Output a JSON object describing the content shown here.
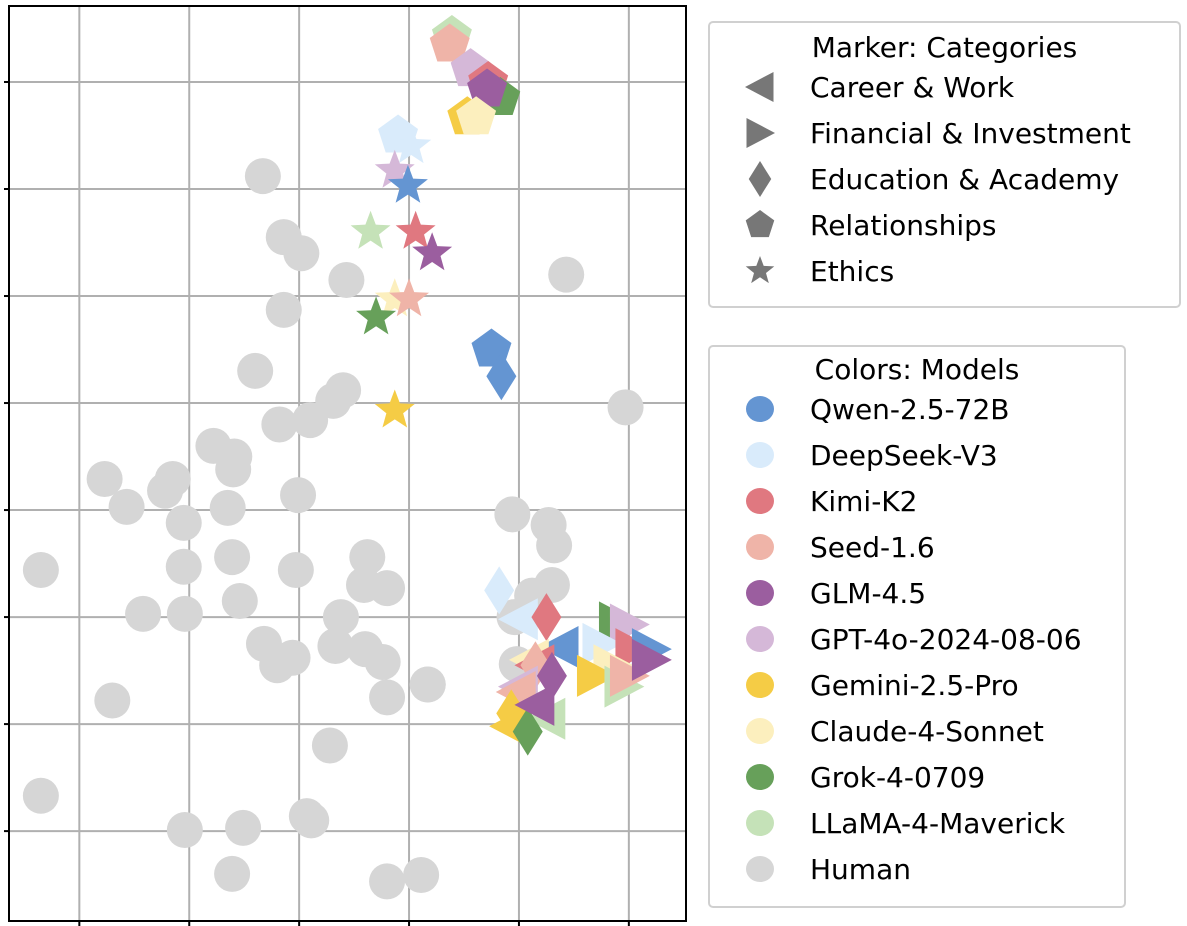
{
  "chart_data": {
    "type": "scatter",
    "title": "",
    "xlabel": "",
    "ylabel": "",
    "xlim": [
      -0.64,
      5.52
    ],
    "ylim": [
      -0.84,
      7.71
    ],
    "x_gridlines": [
      0,
      1,
      2,
      3,
      4,
      5
    ],
    "y_gridlines": [
      0,
      1,
      2,
      3,
      4,
      5,
      6,
      7
    ],
    "grid": true,
    "tick_labels_visible": false,
    "marker_legend": {
      "title": "Marker: Categories",
      "placement": "top-right-outside",
      "entries": [
        {
          "label": "Career & Work",
          "marker": "triangle-left"
        },
        {
          "label": "Financial & Investment",
          "marker": "triangle-right"
        },
        {
          "label": "Education & Academy",
          "marker": "diamond"
        },
        {
          "label": "Relationships",
          "marker": "pentagon"
        },
        {
          "label": "Ethics",
          "marker": "star"
        }
      ]
    },
    "color_legend": {
      "title": "Colors: Models",
      "placement": "right-outside",
      "entries": [
        {
          "label": "Qwen-2.5-72B",
          "color": "#6495d2"
        },
        {
          "label": "DeepSeek-V3",
          "color": "#d9ebfb"
        },
        {
          "label": "Kimi-K2",
          "color": "#e07880"
        },
        {
          "label": "Seed-1.6",
          "color": "#efb4a8"
        },
        {
          "label": "GLM-4.5",
          "color": "#9b5e9f"
        },
        {
          "label": "GPT-4o-2024-08-06",
          "color": "#d5b8d8"
        },
        {
          "label": "Gemini-2.5-Pro",
          "color": "#f5cc45"
        },
        {
          "label": "Claude-4-Sonnet",
          "color": "#fcefbe"
        },
        {
          "label": "Grok-4-0709",
          "color": "#67a05a"
        },
        {
          "label": "LLaMA-4-Maverick",
          "color": "#c5e2b8"
        },
        {
          "label": "Human",
          "color": "#d6d6d6"
        }
      ]
    },
    "human_points": [
      [
        1.67,
        6.12
      ],
      [
        1.86,
        5.55
      ],
      [
        2.02,
        5.4
      ],
      [
        2.43,
        5.15
      ],
      [
        1.86,
        4.87
      ],
      [
        1.6,
        4.3
      ],
      [
        2.1,
        3.84
      ],
      [
        1.82,
        3.8
      ],
      [
        2.4,
        4.12
      ],
      [
        2.31,
        4.02
      ],
      [
        1.4,
        3.38
      ],
      [
        1.41,
        3.5
      ],
      [
        1.35,
        3.02
      ],
      [
        0.85,
        3.29
      ],
      [
        1.99,
        3.14
      ],
      [
        1.22,
        3.6
      ],
      [
        0.23,
        3.29
      ],
      [
        0.78,
        3.18
      ],
      [
        0.43,
        3.03
      ],
      [
        0.95,
        2.88
      ],
      [
        -0.35,
        2.44
      ],
      [
        1.39,
        2.56
      ],
      [
        1.97,
        2.44
      ],
      [
        0.95,
        2.47
      ],
      [
        1.46,
        2.15
      ],
      [
        0.58,
        2.03
      ],
      [
        0.96,
        2.03
      ],
      [
        2.62,
        2.56
      ],
      [
        2.59,
        2.3
      ],
      [
        2.8,
        2.27
      ],
      [
        2.38,
        2.0
      ],
      [
        2.33,
        1.73
      ],
      [
        1.68,
        1.75
      ],
      [
        1.94,
        1.62
      ],
      [
        1.8,
        1.55
      ],
      [
        2.6,
        1.7
      ],
      [
        2.76,
        1.58
      ],
      [
        2.8,
        1.25
      ],
      [
        3.17,
        1.37
      ],
      [
        2.28,
        0.8
      ],
      [
        -0.35,
        0.33
      ],
      [
        0.3,
        1.22
      ],
      [
        0.96,
        0.01
      ],
      [
        1.49,
        0.03
      ],
      [
        2.07,
        0.14
      ],
      [
        2.11,
        0.1
      ],
      [
        1.39,
        -0.4
      ],
      [
        2.8,
        -0.47
      ],
      [
        3.11,
        -0.41
      ],
      [
        3.17,
        1.37
      ],
      [
        3.94,
        2.96
      ],
      [
        4.27,
        2.86
      ],
      [
        4.32,
        2.67
      ],
      [
        4.3,
        2.3
      ],
      [
        4.12,
        2.2
      ],
      [
        3.98,
        1.56
      ],
      [
        4.97,
        3.96
      ],
      [
        4.43,
        5.2
      ],
      [
        3.96,
        2.0
      ]
    ],
    "model_points": [
      {
        "model": "LLaMA-4-Maverick",
        "category": "Relationships",
        "x": 3.39,
        "y": 7.43
      },
      {
        "model": "Seed-1.6",
        "category": "Relationships",
        "x": 3.37,
        "y": 7.35
      },
      {
        "model": "GPT-4o-2024-08-06",
        "category": "Relationships",
        "x": 3.56,
        "y": 7.12
      },
      {
        "model": "Kimi-K2",
        "category": "Relationships",
        "x": 3.72,
        "y": 7.0
      },
      {
        "model": "Grok-4-0709",
        "category": "Relationships",
        "x": 3.83,
        "y": 6.85
      },
      {
        "model": "GLM-4.5",
        "category": "Relationships",
        "x": 3.71,
        "y": 6.93
      },
      {
        "model": "Gemini-2.5-Pro",
        "category": "Relationships",
        "x": 3.53,
        "y": 6.67
      },
      {
        "model": "Claude-4-Sonnet",
        "category": "Relationships",
        "x": 3.61,
        "y": 6.67
      },
      {
        "model": "DeepSeek-V3",
        "category": "Relationships",
        "x": 2.9,
        "y": 6.5
      },
      {
        "model": "DeepSeek-V3",
        "category": "Ethics",
        "x": 3.02,
        "y": 6.4
      },
      {
        "model": "GPT-4o-2024-08-06",
        "category": "Ethics",
        "x": 2.87,
        "y": 6.17
      },
      {
        "model": "Qwen-2.5-72B",
        "category": "Ethics",
        "x": 2.99,
        "y": 6.03
      },
      {
        "model": "LLaMA-4-Maverick",
        "category": "Ethics",
        "x": 2.65,
        "y": 5.6
      },
      {
        "model": "Kimi-K2",
        "category": "Ethics",
        "x": 3.06,
        "y": 5.6
      },
      {
        "model": "GLM-4.5",
        "category": "Ethics",
        "x": 3.21,
        "y": 5.4
      },
      {
        "model": "Claude-4-Sonnet",
        "category": "Ethics",
        "x": 2.87,
        "y": 4.97
      },
      {
        "model": "Seed-1.6",
        "category": "Ethics",
        "x": 3.0,
        "y": 4.97
      },
      {
        "model": "Grok-4-0709",
        "category": "Ethics",
        "x": 2.7,
        "y": 4.8
      },
      {
        "model": "Gemini-2.5-Pro",
        "category": "Ethics",
        "x": 2.87,
        "y": 3.93
      },
      {
        "model": "Qwen-2.5-72B",
        "category": "Relationships",
        "x": 3.75,
        "y": 4.5
      },
      {
        "model": "Qwen-2.5-72B",
        "category": "Education & Academy",
        "x": 3.84,
        "y": 4.25
      },
      {
        "model": "DeepSeek-V3",
        "category": "Education & Academy",
        "x": 3.82,
        "y": 2.25
      },
      {
        "model": "DeepSeek-V3",
        "category": "Career & Work",
        "x": 4.0,
        "y": 1.98
      },
      {
        "model": "Kimi-K2",
        "category": "Education & Academy",
        "x": 4.25,
        "y": 2.0
      },
      {
        "model": "Qwen-2.5-72B",
        "category": "Career & Work",
        "x": 4.37,
        "y": 1.72
      },
      {
        "model": "Claude-4-Sonnet",
        "category": "Career & Work",
        "x": 4.1,
        "y": 1.6
      },
      {
        "model": "Kimi-K2",
        "category": "Career & Work",
        "x": 4.15,
        "y": 1.55
      },
      {
        "model": "Seed-1.6",
        "category": "Education & Academy",
        "x": 4.15,
        "y": 1.55
      },
      {
        "model": "GPT-4o-2024-08-06",
        "category": "Career & Work",
        "x": 4.0,
        "y": 1.35
      },
      {
        "model": "Seed-1.6",
        "category": "Career & Work",
        "x": 3.98,
        "y": 1.3
      },
      {
        "model": "GLM-4.5",
        "category": "Education & Academy",
        "x": 4.3,
        "y": 1.45
      },
      {
        "model": "LLaMA-4-Maverick",
        "category": "Career & Work",
        "x": 4.25,
        "y": 1.05
      },
      {
        "model": "Gemini-2.5-Pro",
        "category": "Education & Academy",
        "x": 3.93,
        "y": 1.1
      },
      {
        "model": "Gemini-2.5-Pro",
        "category": "Career & Work",
        "x": 3.92,
        "y": 0.98
      },
      {
        "model": "Grok-4-0709",
        "category": "Education & Academy",
        "x": 4.08,
        "y": 0.93
      },
      {
        "model": "GLM-4.5",
        "category": "Career & Work",
        "x": 4.15,
        "y": 1.18
      },
      {
        "model": "Grok-4-0709",
        "category": "Financial & Investment",
        "x": 4.9,
        "y": 1.95
      },
      {
        "model": "GPT-4o-2024-08-06",
        "category": "Financial & Investment",
        "x": 5.0,
        "y": 1.93
      },
      {
        "model": "DeepSeek-V3",
        "category": "Financial & Investment",
        "x": 4.75,
        "y": 1.75
      },
      {
        "model": "Kimi-K2",
        "category": "Financial & Investment",
        "x": 5.05,
        "y": 1.7
      },
      {
        "model": "Qwen-2.5-72B",
        "category": "Financial & Investment",
        "x": 5.2,
        "y": 1.7
      },
      {
        "model": "Claude-4-Sonnet",
        "category": "Financial & Investment",
        "x": 4.85,
        "y": 1.55
      },
      {
        "model": "Gemini-2.5-Pro",
        "category": "Financial & Investment",
        "x": 4.7,
        "y": 1.45
      },
      {
        "model": "LLaMA-4-Maverick",
        "category": "Financial & Investment",
        "x": 4.95,
        "y": 1.35
      },
      {
        "model": "Seed-1.6",
        "category": "Financial & Investment",
        "x": 5.0,
        "y": 1.45
      },
      {
        "model": "GLM-4.5",
        "category": "Financial & Investment",
        "x": 5.2,
        "y": 1.6
      }
    ]
  }
}
